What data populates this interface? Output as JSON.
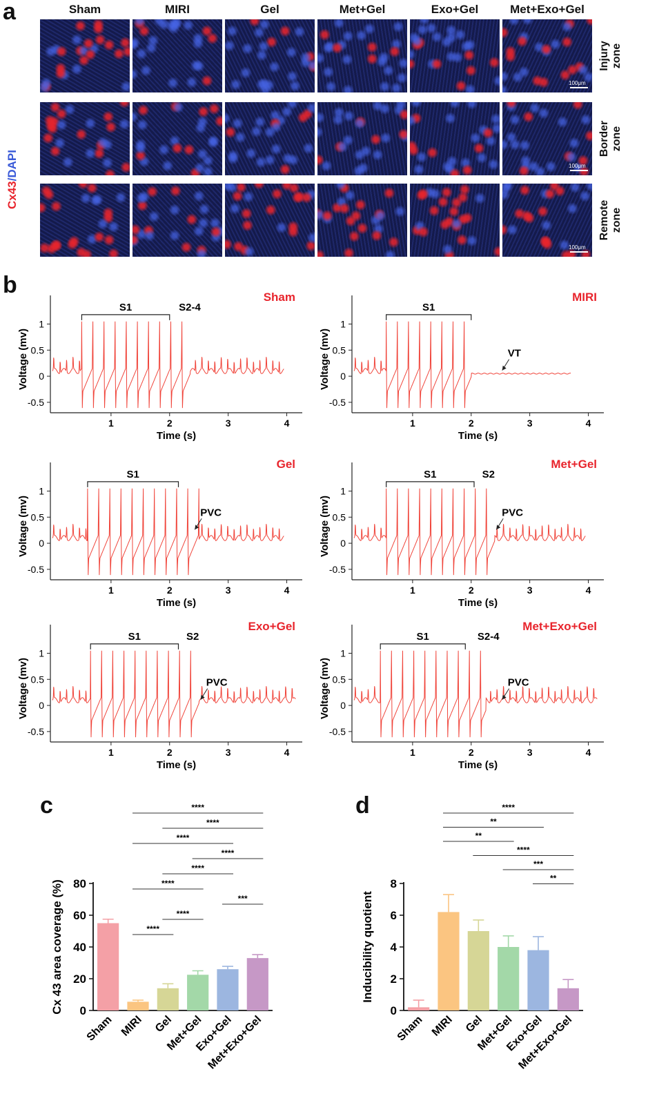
{
  "panel_a": {
    "letter": "a",
    "stain_red": "Cx43",
    "stain_sep": "/",
    "stain_blue": "DAPI",
    "columns": [
      "Sham",
      "MIRI",
      "Gel",
      "Met+Gel",
      "Exo+Gel",
      "Met+Exo+Gel"
    ],
    "rows": [
      {
        "line1": "Injury",
        "line2": "zone"
      },
      {
        "line1": "Border",
        "line2": "zone"
      },
      {
        "line1": "Remote",
        "line2": "zone"
      }
    ],
    "scale_label": "100μm",
    "colors": {
      "red": "#e8242c",
      "blue": "#3a5ad8",
      "bg": "#141a4a"
    }
  },
  "panel_b": {
    "letter": "b",
    "ylabel": "Voltage (mv)",
    "xlabel": "Time (s)",
    "yticks": [
      "1",
      "0.5",
      "0",
      "-0.5"
    ],
    "xticks": [
      "1",
      "2",
      "3",
      "4"
    ],
    "trace_color": "#f0443a",
    "title_color": "#e8242c",
    "plots": [
      {
        "title": "Sham",
        "s1": "S1",
        "s2": "S2-4",
        "annot": ""
      },
      {
        "title": "MIRI",
        "s1": "S1",
        "s2": "",
        "annot": "VT"
      },
      {
        "title": "Gel",
        "s1": "S1",
        "s2": "",
        "annot": "PVC"
      },
      {
        "title": "Met+Gel",
        "s1": "S1",
        "s2": "S2",
        "annot": "PVC"
      },
      {
        "title": "Exo+Gel",
        "s1": "S1",
        "s2": "S2",
        "annot": "PVC"
      },
      {
        "title": "Met+Exo+Gel",
        "s1": "S1",
        "s2": "S2-4",
        "annot": "PVC"
      }
    ]
  },
  "chart_data": [
    {
      "type": "bar",
      "panel": "c",
      "title": "",
      "xlabel": "",
      "ylabel": "Cx 43 area coverage (%)",
      "categories": [
        "Sham",
        "MIRI",
        "Gel",
        "Met+Gel",
        "Exo+Gel",
        "Met+Exo+Gel"
      ],
      "values": [
        55,
        5.5,
        14,
        22.5,
        26,
        33
      ],
      "errors": [
        2.5,
        1.0,
        2.8,
        2.5,
        1.8,
        2.2
      ],
      "colors": [
        "#f4a0a6",
        "#fbc581",
        "#d6d696",
        "#a3d8a8",
        "#9cb6e0",
        "#c698c6"
      ],
      "ylim": [
        0,
        80
      ],
      "yticks": [
        "0",
        "20",
        "40",
        "60",
        "80"
      ],
      "significance": [
        {
          "from": 1,
          "to": 5,
          "label": "****"
        },
        {
          "from": 2,
          "to": 5,
          "label": "****"
        },
        {
          "from": 1,
          "to": 4,
          "label": "****"
        },
        {
          "from": 3,
          "to": 5,
          "label": "****"
        },
        {
          "from": 2,
          "to": 4,
          "label": "****"
        },
        {
          "from": 1,
          "to": 3,
          "label": "****"
        },
        {
          "from": 4,
          "to": 5,
          "label": "***"
        },
        {
          "from": 2,
          "to": 3,
          "label": "****"
        },
        {
          "from": 1,
          "to": 2,
          "label": "****"
        }
      ]
    },
    {
      "type": "bar",
      "panel": "d",
      "title": "",
      "xlabel": "",
      "ylabel": "Inducibility quotient",
      "categories": [
        "Sham",
        "MIRI",
        "Gel",
        "Met+Gel",
        "Exo+Gel",
        "Met+Exo+Gel"
      ],
      "values": [
        0.2,
        6.2,
        5.0,
        4.0,
        3.8,
        1.4
      ],
      "errors": [
        0.45,
        1.1,
        0.7,
        0.7,
        0.85,
        0.55
      ],
      "colors": [
        "#f4a0a6",
        "#fbc581",
        "#d6d696",
        "#a3d8a8",
        "#9cb6e0",
        "#c698c6"
      ],
      "ylim": [
        0,
        8
      ],
      "yticks": [
        "0",
        "2",
        "4",
        "6",
        "8"
      ],
      "significance": [
        {
          "from": 1,
          "to": 5,
          "label": "****"
        },
        {
          "from": 1,
          "to": 4,
          "label": "**"
        },
        {
          "from": 1,
          "to": 3,
          "label": "**"
        },
        {
          "from": 2,
          "to": 5,
          "label": "****"
        },
        {
          "from": 3,
          "to": 5,
          "label": "***"
        },
        {
          "from": 4,
          "to": 5,
          "label": "**"
        }
      ]
    }
  ]
}
